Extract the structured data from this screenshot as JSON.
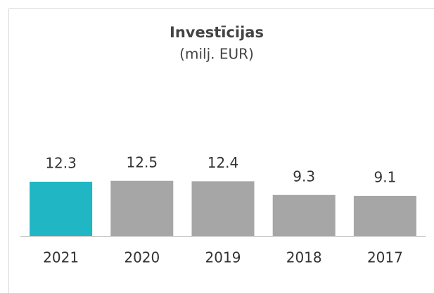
{
  "chart_data": {
    "type": "bar",
    "title": "Investīcijas",
    "subtitle": "(milj. EUR)",
    "categories": [
      "2021",
      "2020",
      "2019",
      "2018",
      "2017"
    ],
    "values": [
      12.3,
      12.5,
      12.4,
      9.3,
      9.1
    ],
    "colors": [
      "#20b6c4",
      "#a6a6a6",
      "#a6a6a6",
      "#a6a6a6",
      "#a6a6a6"
    ]
  }
}
